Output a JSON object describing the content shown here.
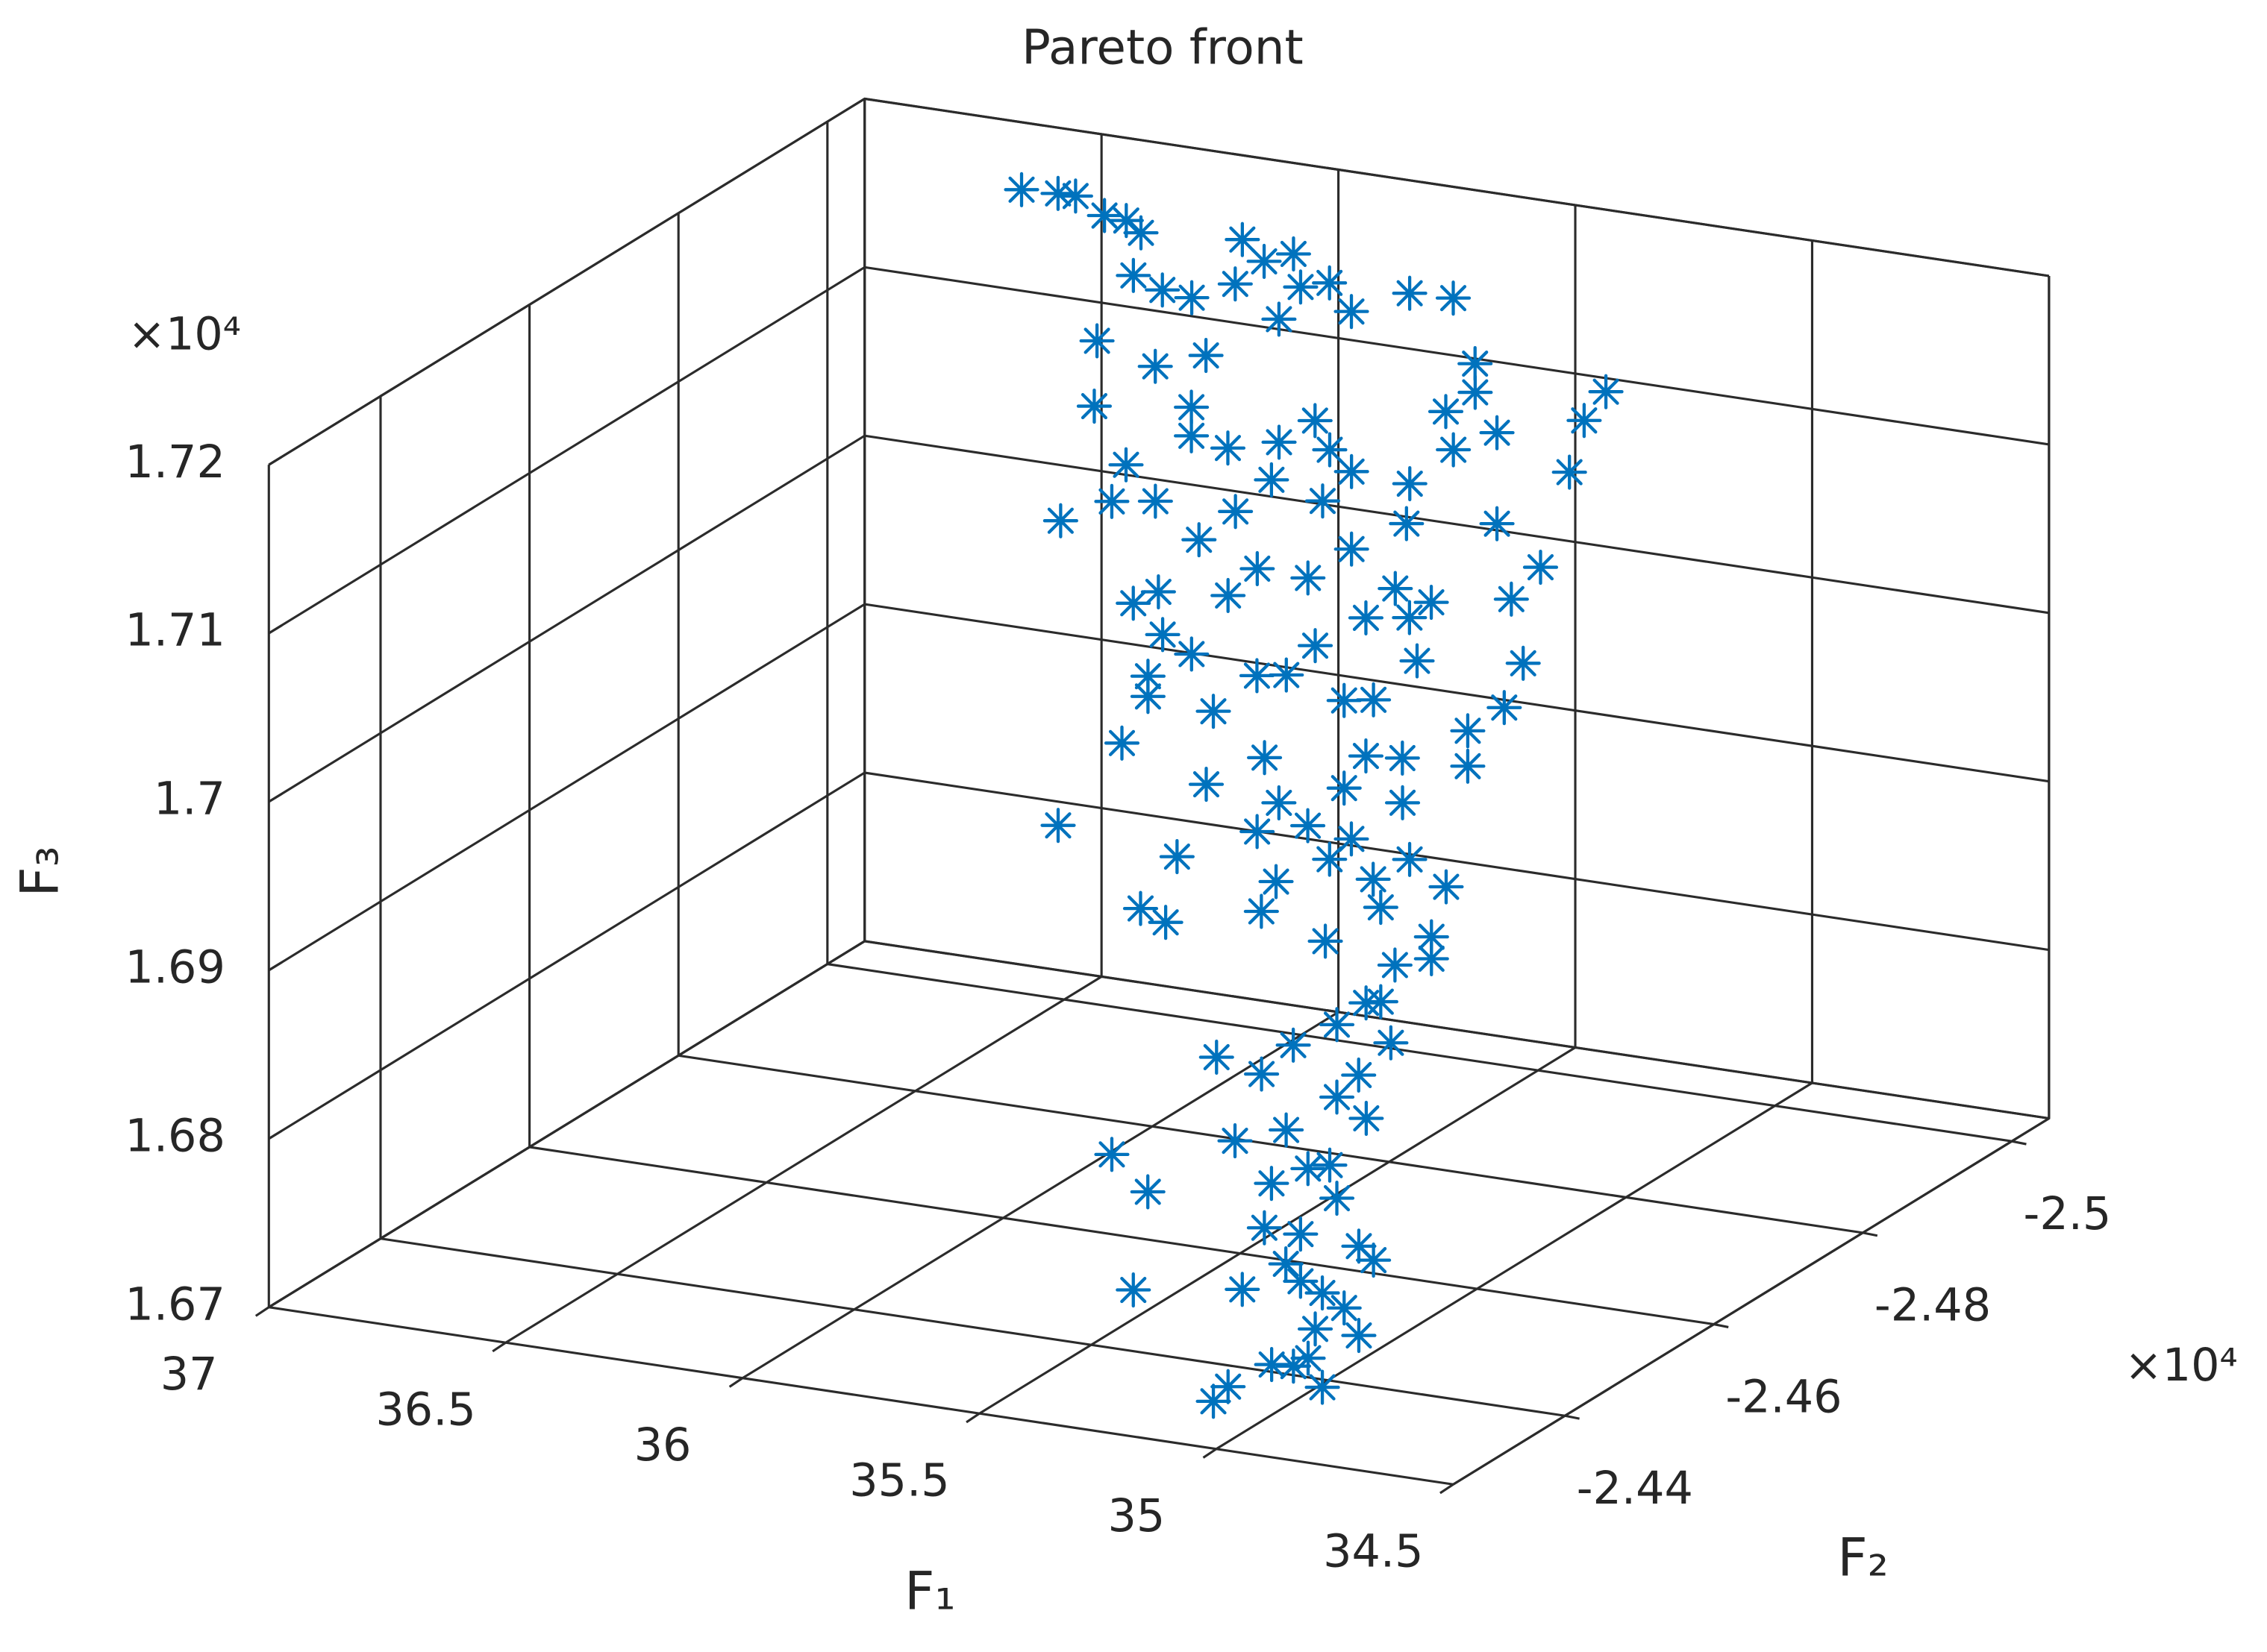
{
  "chart_data": {
    "type": "scatter3d",
    "title": "Pareto front",
    "xlabel": "F₁",
    "ylabel": "F₂",
    "zlabel": "F₃",
    "y_multiplier": "×10⁴",
    "z_multiplier": "×10⁴",
    "color": "#0072bd",
    "marker": "*",
    "grid": true,
    "xlim": [
      34.5,
      37
    ],
    "ylim": [
      -25050,
      -24250
    ],
    "zlim": [
      16700,
      17200
    ],
    "xticks": [
      34.5,
      35,
      35.5,
      36,
      36.5,
      37
    ],
    "yticks": [
      {
        "value": -25000,
        "label": "-2.5"
      },
      {
        "value": -24800,
        "label": "-2.48"
      },
      {
        "value": -24600,
        "label": "-2.46"
      },
      {
        "value": -24400,
        "label": "-2.44"
      }
    ],
    "zticks": [
      {
        "value": 16700,
        "label": "1.67"
      },
      {
        "value": 16800,
        "label": "1.68"
      },
      {
        "value": 16900,
        "label": "1.69"
      },
      {
        "value": 17000,
        "label": "1.7"
      },
      {
        "value": 17100,
        "label": "1.71"
      },
      {
        "value": 17200,
        "label": "1.72"
      }
    ],
    "x": [
      36.543,
      36.466,
      36.429,
      36.368,
      36.322,
      36.291,
      36.307,
      36.12,
      36.058,
      36.077,
      36.031,
      35.969,
      36.092,
      35.954,
      35.893,
      35.721,
      35.874,
      35.598,
      35.506,
      36.258,
      36.135,
      36.028,
      36.138,
      35.933,
      35.933,
      35.856,
      35.748,
      35.672,
      35.641,
      35.764,
      35.595,
      35.472,
      35.46,
      35.334,
      35.396,
      35.288,
      35.38,
      35.058,
      35.104,
      35.135,
      36.209,
      36.071,
      36.101,
      36.009,
      35.84,
      35.917,
      35.656,
      35.479,
      35.288,
      35.595,
      35.794,
      35.687,
      35.867,
      35.814,
      35.667,
      35.314,
      35.238,
      35.376,
      35.069,
      35.196,
      35.805,
      35.744,
      35.606,
      35.544,
      35.483,
      35.284,
      35.268,
      35.044,
      35.836,
      35.836,
      35.698,
      35.422,
      35.36,
      35.161,
      35.084,
      35.891,
      35.59,
      35.376,
      35.299,
      35.161,
      35.837,
      35.713,
      35.371,
      35.422,
      35.11,
      35.417,
      35.31,
      35.218,
      35.586,
      35.264,
      35.172,
      35.095,
      35.018,
      35.377,
      35.663,
      35.61,
      35.408,
      35.156,
      35.049,
      35.273,
      35.126,
      35.049,
      35.187,
      35.06,
      35.156,
      35.152,
      34.946,
      35.314,
      35.219,
      35.014,
      35.06,
      34.998,
      35.167,
      35.275,
      35.075,
      35.535,
      35.459,
      35.198,
      35.121,
      35.06,
      35.213,
      34.948,
      34.825,
      34.979,
      34.794,
      35.301,
      35.071,
      34.948,
      34.902,
      34.856,
      34.917,
      35.009,
      34.932,
      34.825,
      35.101,
      35.132,
      34.902,
      34.963
    ],
    "y": [
      -24970,
      -24970,
      -24970,
      -24970,
      -24970,
      -24970,
      -24970,
      -24890,
      -24890,
      -24970,
      -24970,
      -24970,
      -24970,
      -24970,
      -24970,
      -24890,
      -24890,
      -24890,
      -24890,
      -24890,
      -24890,
      -24890,
      -24810,
      -24810,
      -24810,
      -24810,
      -24810,
      -24810,
      -24810,
      -24810,
      -24810,
      -24810,
      -24890,
      -24810,
      -24810,
      -24810,
      -24810,
      -24810,
      -24810,
      -24810,
      -24810,
      -24810,
      -24810,
      -24810,
      -24810,
      -24810,
      -24810,
      -24810,
      -24810,
      -24810,
      -24810,
      -24810,
      -24690,
      -24690,
      -24690,
      -24690,
      -24690,
      -24690,
      -24690,
      -24810,
      -24690,
      -24690,
      -24690,
      -24690,
      -24690,
      -24690,
      -24690,
      -24690,
      -24690,
      -24690,
      -24690,
      -24690,
      -24690,
      -24690,
      -24690,
      -24690,
      -24690,
      -24690,
      -24690,
      -24690,
      -24570,
      -24690,
      -24570,
      -24690,
      -24570,
      -24570,
      -24570,
      -24570,
      -24570,
      -24570,
      -24570,
      -24570,
      -24570,
      -24570,
      -24570,
      -24570,
      -24570,
      -24570,
      -24570,
      -24570,
      -24570,
      -24570,
      -24570,
      -24450,
      -24570,
      -24450,
      -24450,
      -24450,
      -24450,
      -24450,
      -24450,
      -24450,
      -24450,
      -24450,
      -24450,
      -24450,
      -24450,
      -24450,
      -24450,
      -24450,
      -24450,
      -24330,
      -24330,
      -24330,
      -24330,
      -24330,
      -24330,
      -24330,
      -24330,
      -24330,
      -24330,
      -24330,
      -24330,
      -24330,
      -24330,
      -24330,
      -24330,
      -24330
    ],
    "z": [
      17187,
      17188,
      17188,
      17179,
      17178,
      17172,
      17146,
      17167,
      17165,
      17177,
      17166,
      17173,
      17150,
      17154,
      17159,
      17171,
      17160,
      17187,
      17188,
      17131,
      17121,
      17132,
      17119,
      17127,
      17110,
      17106,
      17114,
      17130,
      17114,
      17091,
      17103,
      17101,
      17151,
      17161,
      17147,
      17139,
      17125,
      17173,
      17154,
      17122,
      17048,
      17087,
      17064,
      17068,
      17069,
      17049,
      17083,
      17077,
      17085,
      17057,
      17037,
      17036,
      17046,
      17055,
      17059,
      17078,
      17073,
      17058,
      17082,
      17063,
      17030,
      17021,
      17014,
      17017,
      17037,
      17062,
      17037,
      17045,
      17004,
      16992,
      16989,
      17007,
      17010,
      17000,
      17017,
      16962,
      16966,
      16976,
      16978,
      16979,
      16948,
      16945,
      16981,
      16955,
      16992,
      16962,
      16970,
      16966,
      16940,
      16952,
      16944,
      16959,
      16946,
      16934,
      16906,
      16900,
      16915,
      16928,
      16915,
      16903,
      16895,
      16902,
      16870,
      16895,
      16872,
      16879,
      16889,
      16865,
      16859,
      16867,
      16852,
      16842,
      16828,
      16817,
      16811,
      16798,
      16779,
      16795,
      16807,
      16792,
      16768,
      16808,
      16806,
      16789,
      16799,
      16760,
      16770,
      16780,
      16775,
      16768,
      16753,
      16728,
      16735,
      16753,
      16711,
      16701,
      16719,
      16729
    ]
  }
}
